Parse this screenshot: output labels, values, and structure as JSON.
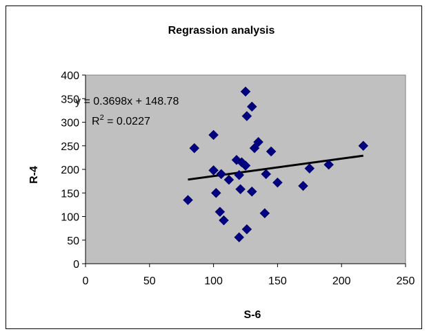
{
  "chart_data": {
    "type": "scatter",
    "title": "Regrassion analysis",
    "xlabel": "S-6",
    "ylabel": "R-4",
    "xlim": [
      0,
      250
    ],
    "ylim": [
      0,
      400
    ],
    "xticks": [
      0,
      50,
      100,
      150,
      200,
      250
    ],
    "yticks": [
      0,
      50,
      100,
      150,
      200,
      250,
      300,
      350,
      400
    ],
    "grid": false,
    "plot_background": "#c0c0c0",
    "marker_color": "#000080",
    "marker_shape": "diamond",
    "series": [
      {
        "points": [
          [
            80,
            135
          ],
          [
            85,
            245
          ],
          [
            100,
            198
          ],
          [
            100,
            273
          ],
          [
            102,
            150
          ],
          [
            105,
            110
          ],
          [
            106,
            190
          ],
          [
            108,
            92
          ],
          [
            112,
            178
          ],
          [
            118,
            220
          ],
          [
            120,
            56
          ],
          [
            120,
            188
          ],
          [
            121,
            158
          ],
          [
            122,
            215
          ],
          [
            125,
            208
          ],
          [
            125,
            365
          ],
          [
            126,
            313
          ],
          [
            126,
            73
          ],
          [
            130,
            153
          ],
          [
            130,
            333
          ],
          [
            132,
            245
          ],
          [
            135,
            258
          ],
          [
            140,
            107
          ],
          [
            141,
            190
          ],
          [
            145,
            238
          ],
          [
            150,
            172
          ],
          [
            170,
            165
          ],
          [
            175,
            202
          ],
          [
            190,
            210
          ],
          [
            217,
            250
          ]
        ]
      }
    ],
    "trendline": {
      "slope": 0.3698,
      "intercept": 148.78,
      "x_range": [
        80,
        217
      ],
      "color": "#000000",
      "equation": "y = 0.3698x + 148.78",
      "r2_label": "R",
      "r2_exponent": "2",
      "r2_value": " = 0.0227"
    }
  }
}
